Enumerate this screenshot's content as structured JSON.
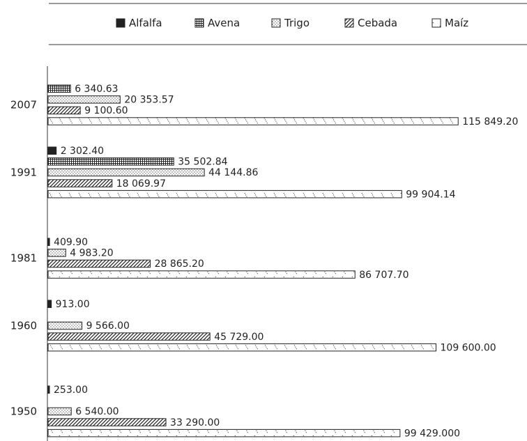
{
  "chart_data": {
    "type": "bar",
    "orientation": "horizontal",
    "title": "",
    "xlabel": "",
    "ylabel": "",
    "grid": false,
    "legend_position": "top",
    "categories": [
      "2007",
      "1991",
      "1981",
      "1960",
      "1950"
    ],
    "series": [
      {
        "name": "Alfalfa",
        "pattern": "solid",
        "values": [
          null,
          2302.4,
          409.9,
          913.0,
          253.0
        ],
        "labels": [
          null,
          "2 302.40",
          "409.90",
          "913.00",
          "253.00"
        ]
      },
      {
        "name": "Avena",
        "pattern": "grid",
        "values": [
          6340.63,
          35502.84,
          null,
          null,
          null
        ],
        "labels": [
          "6 340.63",
          "35 502.84",
          null,
          null,
          null
        ]
      },
      {
        "name": "Trigo",
        "pattern": "dots",
        "values": [
          20353.57,
          44144.86,
          4983.2,
          9566.0,
          6540.0
        ],
        "labels": [
          "20 353.57",
          "44 144.86",
          "4 983.20",
          "9 566.00",
          "6 540.00"
        ]
      },
      {
        "name": "Cebada",
        "pattern": "diagonal",
        "values": [
          9100.6,
          18069.97,
          28865.2,
          45729.0,
          33290.0
        ],
        "labels": [
          "9 100.60",
          "18 069.97",
          "28 865.20",
          "45 729.00",
          "33 290.00"
        ]
      },
      {
        "name": "Maíz",
        "pattern": "sparse-diagonal",
        "values": [
          115849.2,
          99904.14,
          86707.7,
          109600.0,
          99429.0
        ],
        "labels": [
          "115 849.20",
          "99 904.14",
          "86 707.70",
          "109 600.00",
          "99 429.000"
        ]
      }
    ],
    "xlim": [
      0,
      116000
    ]
  },
  "colors": {
    "ink": "#222222",
    "fill_light": "#ffffff"
  }
}
